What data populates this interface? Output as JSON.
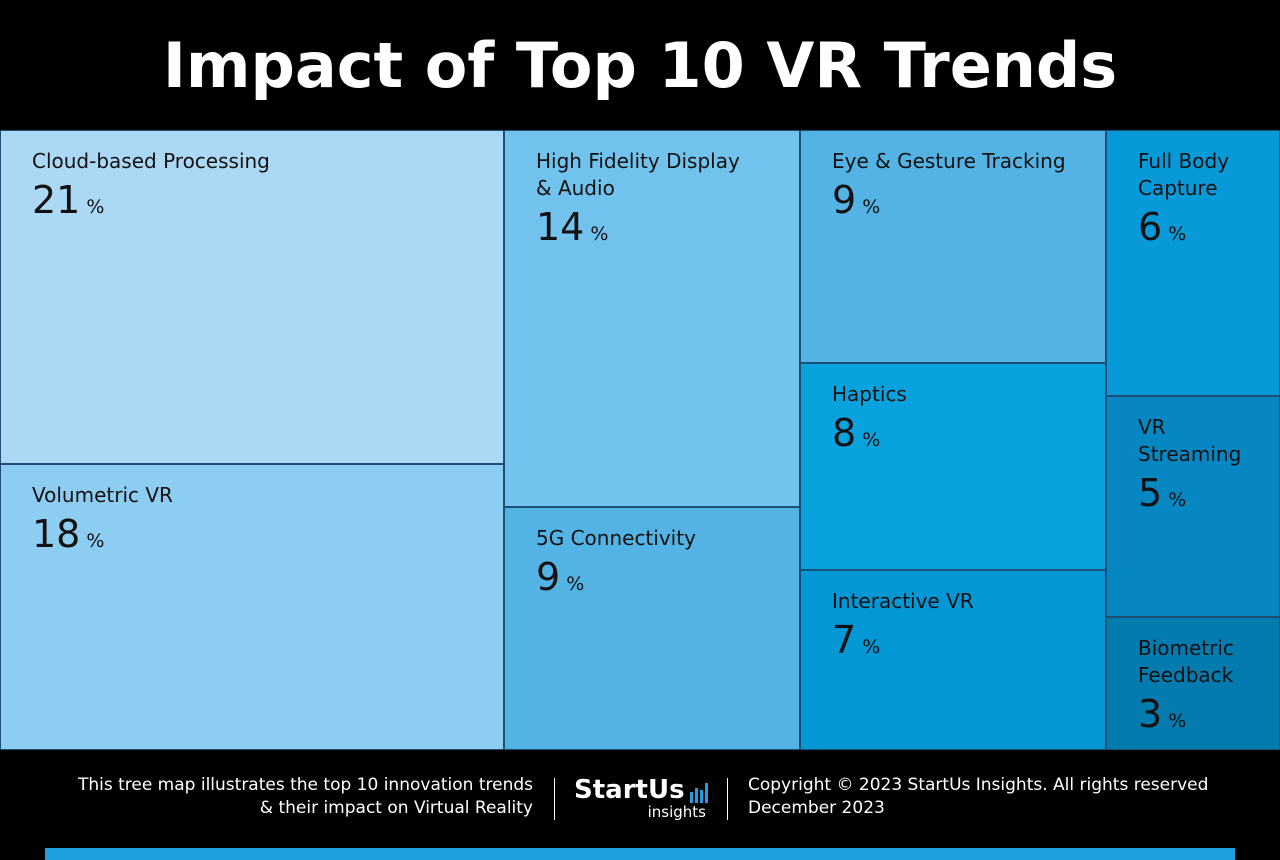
{
  "chart_data": {
    "type": "treemap",
    "title": "Impact of Top 10 VR Trends",
    "unit": "%",
    "items": [
      {
        "label": "Cloud-based Processing",
        "value": 21,
        "color": "#aad8f5"
      },
      {
        "label": "Volumetric VR",
        "value": 18,
        "color": "#8ecdf2"
      },
      {
        "label": "High Fidelity Display\n& Audio",
        "value": 14,
        "color": "#72c2ee"
      },
      {
        "label": "5G Connectivity",
        "value": 9,
        "color": "#54b3e5"
      },
      {
        "label": "Eye & Gesture Tracking",
        "value": 9,
        "color": "#54b3e5"
      },
      {
        "label": "Haptics",
        "value": 8,
        "color": "#08a3df"
      },
      {
        "label": "Interactive VR",
        "value": 7,
        "color": "#0497d6"
      },
      {
        "label": "Full Body\nCapture",
        "value": 6,
        "color": "#0899d9"
      },
      {
        "label": "VR\nStreaming",
        "value": 5,
        "color": "#0687c2"
      },
      {
        "label": "Biometric\nFeedback",
        "value": 3,
        "color": "#047bae"
      }
    ]
  },
  "footer": {
    "description_line1": "This tree map illustrates the top 10 innovation trends",
    "description_line2": "& their impact on Virtual Reality",
    "logo_main": "StartUs",
    "logo_sub": "insights",
    "copyright": "Copyright © 2023 StartUs Insights. All rights reserved",
    "date": "December 2023"
  }
}
